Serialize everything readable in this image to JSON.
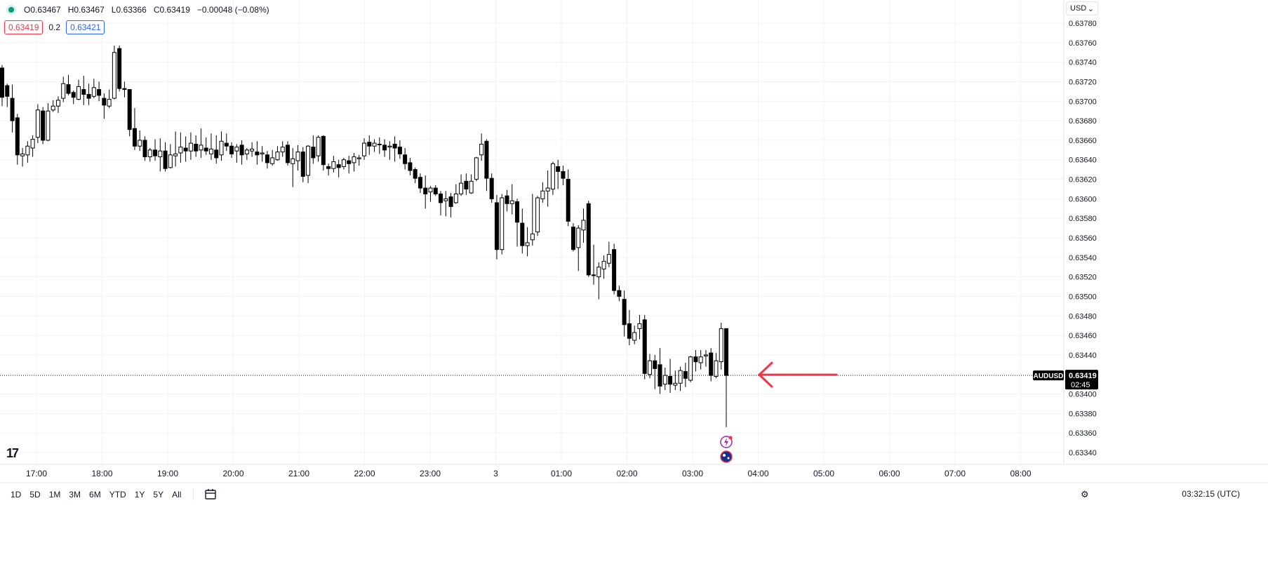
{
  "header": {
    "ohlc": {
      "o": "O0.63467",
      "h": "H0.63467",
      "l": "L0.63366",
      "c": "C0.63419",
      "chg": "−0.00048 (−0.08%)"
    },
    "sell_price": "0.63419",
    "spread": "0.2",
    "buy_price": "0.63421",
    "currency": "USD"
  },
  "symbol_tag": "AUDUSD",
  "price_tag": "0.63419",
  "countdown": "02:45",
  "logo_text": "17",
  "toolbar": {
    "ranges": [
      "1D",
      "5D",
      "1M",
      "3M",
      "6M",
      "YTD",
      "1Y",
      "5Y",
      "All"
    ],
    "clock": "03:32:15 (UTC)"
  },
  "colors": {
    "up": "#ffffff",
    "down": "#000000",
    "arrow": "#f23645",
    "grid": "#f0f3fa"
  },
  "icons": [
    "calendar-range-icon",
    "settings-icon",
    "news-flash-icon",
    "australia-flag-icon"
  ],
  "chart_data": {
    "type": "candlestick",
    "y_ticks": [
      "0.63780",
      "0.63760",
      "0.63740",
      "0.63720",
      "0.63700",
      "0.63680",
      "0.63660",
      "0.63640",
      "0.63620",
      "0.63600",
      "0.63580",
      "0.63560",
      "0.63540",
      "0.63520",
      "0.63500",
      "0.63480",
      "0.63460",
      "0.63440",
      "0.63420",
      "0.63400",
      "0.63380",
      "0.63360",
      "0.63340"
    ],
    "ylim": [
      0.63327,
      0.63795
    ],
    "x_labels": [
      "17:00",
      "18:00",
      "19:00",
      "20:00",
      "21:00",
      "22:00",
      "23:00",
      "3",
      "01:00",
      "02:00",
      "03:00",
      "04:00",
      "05:00",
      "06:00",
      "07:00",
      "08:00"
    ],
    "current_price": 0.63419,
    "candles": [
      [
        0.63734,
        0.63737,
        0.63695,
        0.63704
      ],
      [
        0.63716,
        0.63718,
        0.63694,
        0.63705
      ],
      [
        0.63703,
        0.63717,
        0.63668,
        0.6368
      ],
      [
        0.63683,
        0.63687,
        0.63635,
        0.63645
      ],
      [
        0.63644,
        0.63652,
        0.63633,
        0.63646
      ],
      [
        0.63645,
        0.63659,
        0.63637,
        0.63654
      ],
      [
        0.63652,
        0.63665,
        0.63643,
        0.63661
      ],
      [
        0.63663,
        0.63697,
        0.63657,
        0.63691
      ],
      [
        0.6369,
        0.63694,
        0.63656,
        0.6366
      ],
      [
        0.6366,
        0.63698,
        0.63659,
        0.6369
      ],
      [
        0.63691,
        0.63701,
        0.63689,
        0.63695
      ],
      [
        0.63695,
        0.63705,
        0.63688,
        0.63701
      ],
      [
        0.63703,
        0.63725,
        0.63699,
        0.63718
      ],
      [
        0.63717,
        0.63727,
        0.63706,
        0.63708
      ],
      [
        0.63709,
        0.63711,
        0.63697,
        0.63704
      ],
      [
        0.63702,
        0.63722,
        0.63701,
        0.63715
      ],
      [
        0.63712,
        0.63726,
        0.63696,
        0.63707
      ],
      [
        0.63707,
        0.63718,
        0.63696,
        0.63703
      ],
      [
        0.63705,
        0.63723,
        0.63703,
        0.63714
      ],
      [
        0.63712,
        0.6372,
        0.637,
        0.63706
      ],
      [
        0.63703,
        0.63708,
        0.63682,
        0.63696
      ],
      [
        0.63695,
        0.63712,
        0.63693,
        0.63702
      ],
      [
        0.63703,
        0.63757,
        0.63702,
        0.6375
      ],
      [
        0.63754,
        0.63757,
        0.6371,
        0.63713
      ],
      [
        0.63713,
        0.6372,
        0.63704,
        0.63712
      ],
      [
        0.63712,
        0.63712,
        0.63664,
        0.63671
      ],
      [
        0.63672,
        0.63693,
        0.6365,
        0.63654
      ],
      [
        0.63654,
        0.6367,
        0.63649,
        0.6366
      ],
      [
        0.6366,
        0.63664,
        0.63639,
        0.63643
      ],
      [
        0.63643,
        0.63652,
        0.63638,
        0.6365
      ],
      [
        0.6365,
        0.63661,
        0.63639,
        0.63644
      ],
      [
        0.63643,
        0.63662,
        0.63628,
        0.63649
      ],
      [
        0.63649,
        0.63658,
        0.63628,
        0.63631
      ],
      [
        0.63632,
        0.63656,
        0.63631,
        0.63645
      ],
      [
        0.63644,
        0.63669,
        0.63633,
        0.63646
      ],
      [
        0.63647,
        0.63668,
        0.63637,
        0.63653
      ],
      [
        0.63652,
        0.63664,
        0.63638,
        0.63649
      ],
      [
        0.63649,
        0.63668,
        0.6364,
        0.63657
      ],
      [
        0.63656,
        0.63665,
        0.63643,
        0.63649
      ],
      [
        0.6365,
        0.63672,
        0.63642,
        0.63655
      ],
      [
        0.63652,
        0.63663,
        0.63645,
        0.63649
      ],
      [
        0.63646,
        0.63667,
        0.6364,
        0.63651
      ],
      [
        0.6365,
        0.63665,
        0.63636,
        0.63642
      ],
      [
        0.63645,
        0.63669,
        0.63639,
        0.63659
      ],
      [
        0.63657,
        0.63667,
        0.63649,
        0.63654
      ],
      [
        0.63654,
        0.63658,
        0.63642,
        0.63646
      ],
      [
        0.63649,
        0.63656,
        0.63637,
        0.63653
      ],
      [
        0.63655,
        0.6366,
        0.63635,
        0.63645
      ],
      [
        0.63646,
        0.63652,
        0.6364,
        0.6365
      ],
      [
        0.63649,
        0.63658,
        0.63643,
        0.63651
      ],
      [
        0.63648,
        0.63659,
        0.63635,
        0.63645
      ],
      [
        0.63646,
        0.63654,
        0.63638,
        0.63647
      ],
      [
        0.63645,
        0.63649,
        0.63631,
        0.63637
      ],
      [
        0.63636,
        0.6365,
        0.63634,
        0.63642
      ],
      [
        0.6364,
        0.63654,
        0.63639,
        0.63648
      ],
      [
        0.63648,
        0.63659,
        0.63643,
        0.63653
      ],
      [
        0.63655,
        0.63659,
        0.63634,
        0.63637
      ],
      [
        0.63636,
        0.63652,
        0.63612,
        0.63641
      ],
      [
        0.63639,
        0.63655,
        0.63629,
        0.63648
      ],
      [
        0.63648,
        0.63653,
        0.63617,
        0.63623
      ],
      [
        0.63624,
        0.63655,
        0.63616,
        0.63654
      ],
      [
        0.63653,
        0.63665,
        0.63636,
        0.63642
      ],
      [
        0.63644,
        0.63665,
        0.63638,
        0.63663
      ],
      [
        0.63664,
        0.63665,
        0.63629,
        0.63635
      ],
      [
        0.63633,
        0.63636,
        0.63624,
        0.63631
      ],
      [
        0.63631,
        0.63644,
        0.63627,
        0.63638
      ],
      [
        0.63635,
        0.6364,
        0.63622,
        0.63632
      ],
      [
        0.63633,
        0.63642,
        0.6363,
        0.6364
      ],
      [
        0.63639,
        0.63644,
        0.63626,
        0.63636
      ],
      [
        0.63637,
        0.63647,
        0.63628,
        0.63643
      ],
      [
        0.63641,
        0.63645,
        0.63634,
        0.63642
      ],
      [
        0.63644,
        0.63662,
        0.6364,
        0.63657
      ],
      [
        0.63658,
        0.63665,
        0.63645,
        0.63654
      ],
      [
        0.63654,
        0.63661,
        0.63648,
        0.63657
      ],
      [
        0.63656,
        0.63663,
        0.63646,
        0.63656
      ],
      [
        0.63655,
        0.63661,
        0.63643,
        0.6365
      ],
      [
        0.63653,
        0.63659,
        0.6364,
        0.63654
      ],
      [
        0.63656,
        0.63664,
        0.63638,
        0.63652
      ],
      [
        0.63653,
        0.6366,
        0.63641,
        0.63646
      ],
      [
        0.63645,
        0.63652,
        0.6363,
        0.63636
      ],
      [
        0.63637,
        0.63642,
        0.63624,
        0.63629
      ],
      [
        0.6363,
        0.63632,
        0.63616,
        0.63621
      ],
      [
        0.63622,
        0.63626,
        0.63606,
        0.63611
      ],
      [
        0.63611,
        0.63624,
        0.6359,
        0.63605
      ],
      [
        0.63607,
        0.63613,
        0.63597,
        0.63611
      ],
      [
        0.63611,
        0.63614,
        0.63603,
        0.63605
      ],
      [
        0.63605,
        0.63608,
        0.63583,
        0.63596
      ],
      [
        0.63598,
        0.63608,
        0.63582,
        0.636
      ],
      [
        0.63602,
        0.63606,
        0.63581,
        0.63592
      ],
      [
        0.63596,
        0.63615,
        0.63595,
        0.63605
      ],
      [
        0.63605,
        0.63625,
        0.63603,
        0.63616
      ],
      [
        0.63618,
        0.63626,
        0.63604,
        0.6361
      ],
      [
        0.63606,
        0.63625,
        0.63605,
        0.63618
      ],
      [
        0.6362,
        0.63643,
        0.63618,
        0.63642
      ],
      [
        0.63645,
        0.63667,
        0.63639,
        0.63656
      ],
      [
        0.63659,
        0.63661,
        0.63608,
        0.63621
      ],
      [
        0.63621,
        0.63626,
        0.63596,
        0.636
      ],
      [
        0.63596,
        0.63604,
        0.63538,
        0.63548
      ],
      [
        0.63548,
        0.63605,
        0.63543,
        0.63601
      ],
      [
        0.63603,
        0.63609,
        0.63587,
        0.63595
      ],
      [
        0.63595,
        0.63615,
        0.63584,
        0.63598
      ],
      [
        0.63597,
        0.636,
        0.63551,
        0.63576
      ],
      [
        0.63575,
        0.6359,
        0.63544,
        0.63552
      ],
      [
        0.63552,
        0.63571,
        0.63541,
        0.63555
      ],
      [
        0.63558,
        0.63605,
        0.63552,
        0.63564
      ],
      [
        0.63566,
        0.63603,
        0.63562,
        0.63601
      ],
      [
        0.636,
        0.63617,
        0.63596,
        0.63608
      ],
      [
        0.63608,
        0.63629,
        0.63592,
        0.63611
      ],
      [
        0.6361,
        0.63638,
        0.63604,
        0.63636
      ],
      [
        0.63633,
        0.6364,
        0.6361,
        0.63628
      ],
      [
        0.63628,
        0.63634,
        0.63614,
        0.63621
      ],
      [
        0.6362,
        0.6363,
        0.63572,
        0.63577
      ],
      [
        0.63571,
        0.63575,
        0.63546,
        0.63548
      ],
      [
        0.6355,
        0.63573,
        0.63526,
        0.6357
      ],
      [
        0.63568,
        0.6359,
        0.63555,
        0.63578
      ],
      [
        0.63595,
        0.63598,
        0.6352,
        0.63522
      ],
      [
        0.63522,
        0.63553,
        0.63512,
        0.63522
      ],
      [
        0.6352,
        0.63535,
        0.63497,
        0.6353
      ],
      [
        0.63528,
        0.63542,
        0.63518,
        0.63536
      ],
      [
        0.63534,
        0.63556,
        0.6353,
        0.63543
      ],
      [
        0.63548,
        0.63554,
        0.63502,
        0.63506
      ],
      [
        0.63506,
        0.63511,
        0.63495,
        0.635
      ],
      [
        0.63497,
        0.63506,
        0.63459,
        0.63471
      ],
      [
        0.63472,
        0.63486,
        0.6345,
        0.63457
      ],
      [
        0.63455,
        0.6347,
        0.63451,
        0.63463
      ],
      [
        0.63467,
        0.63481,
        0.63456,
        0.63472
      ],
      [
        0.63476,
        0.63481,
        0.63415,
        0.63421
      ],
      [
        0.6342,
        0.63441,
        0.63416,
        0.63434
      ],
      [
        0.63434,
        0.6344,
        0.63405,
        0.63426
      ],
      [
        0.6343,
        0.63447,
        0.634,
        0.63408
      ],
      [
        0.6341,
        0.63427,
        0.63404,
        0.63419
      ],
      [
        0.63418,
        0.63436,
        0.63401,
        0.6341
      ],
      [
        0.63409,
        0.63424,
        0.63404,
        0.63411
      ],
      [
        0.63411,
        0.63428,
        0.63403,
        0.63424
      ],
      [
        0.63423,
        0.63432,
        0.63407,
        0.63416
      ],
      [
        0.63414,
        0.63439,
        0.63412,
        0.63438
      ],
      [
        0.63438,
        0.63445,
        0.63423,
        0.63433
      ],
      [
        0.63432,
        0.63445,
        0.63425,
        0.63438
      ],
      [
        0.63439,
        0.63445,
        0.63428,
        0.6344
      ],
      [
        0.63442,
        0.63447,
        0.63413,
        0.63419
      ],
      [
        0.63418,
        0.63442,
        0.63416,
        0.63434
      ],
      [
        0.63433,
        0.63473,
        0.63425,
        0.63467
      ],
      [
        0.63467,
        0.63467,
        0.63366,
        0.63419
      ]
    ]
  }
}
